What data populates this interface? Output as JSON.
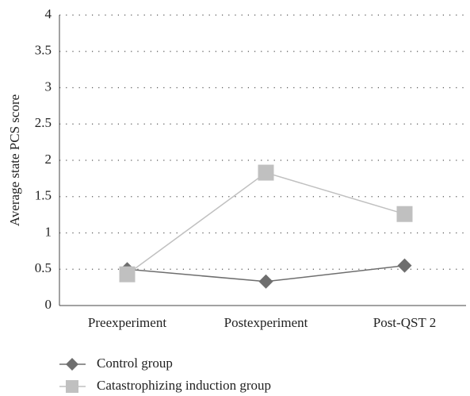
{
  "chart_data": {
    "type": "line",
    "y_label": "Average state PCS score",
    "categories": [
      "Preexperiment",
      "Postexperiment",
      "Post-QST 2"
    ],
    "series": [
      {
        "name": "Control group",
        "color": "#6e6e6e",
        "marker": "diamond",
        "values": [
          0.5,
          0.33,
          0.55
        ]
      },
      {
        "name": "Catastrophizing induction group",
        "color": "#c0c0c0",
        "marker": "square",
        "values": [
          0.43,
          1.83,
          1.26
        ]
      }
    ],
    "ylim": [
      0,
      4
    ],
    "yticks": [
      0,
      0.5,
      1,
      1.5,
      2,
      2.5,
      3,
      3.5,
      4
    ],
    "grid": true,
    "legend": "bottom-left"
  }
}
